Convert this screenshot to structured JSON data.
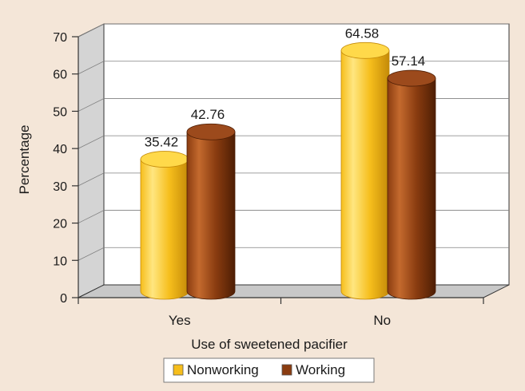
{
  "chart_data": {
    "type": "bar",
    "title": "",
    "xlabel": "Use of sweetened pacifier",
    "ylabel": "Percentage",
    "categories": [
      "Yes",
      "No"
    ],
    "series": [
      {
        "name": "Nonworking",
        "values": [
          35.42,
          64.58
        ]
      },
      {
        "name": "Working",
        "values": [
          42.76,
          57.14
        ]
      }
    ],
    "value_labels": [
      [
        "35.42",
        "64.58"
      ],
      [
        "42.76",
        "57.14"
      ]
    ],
    "ylim": [
      0,
      70
    ],
    "yticks": [
      0,
      10,
      20,
      30,
      40,
      50,
      60,
      70
    ],
    "grid": true,
    "three_d": true,
    "legend_position": "bottom",
    "colors": {
      "background": "#f4e6d8",
      "plot_back": "#ffffff",
      "side_wall": "#d4d4d4",
      "floor": "#c8c8c8",
      "grid": "#808080",
      "axis": "#333333",
      "series": [
        {
          "light": "#ffe680",
          "base": "#f6be1c",
          "dark": "#c48a08",
          "top": "#ffd94a"
        },
        {
          "light": "#c46a2e",
          "base": "#8a3c10",
          "dark": "#4e1e04",
          "top": "#9c4a1c"
        }
      ]
    }
  }
}
